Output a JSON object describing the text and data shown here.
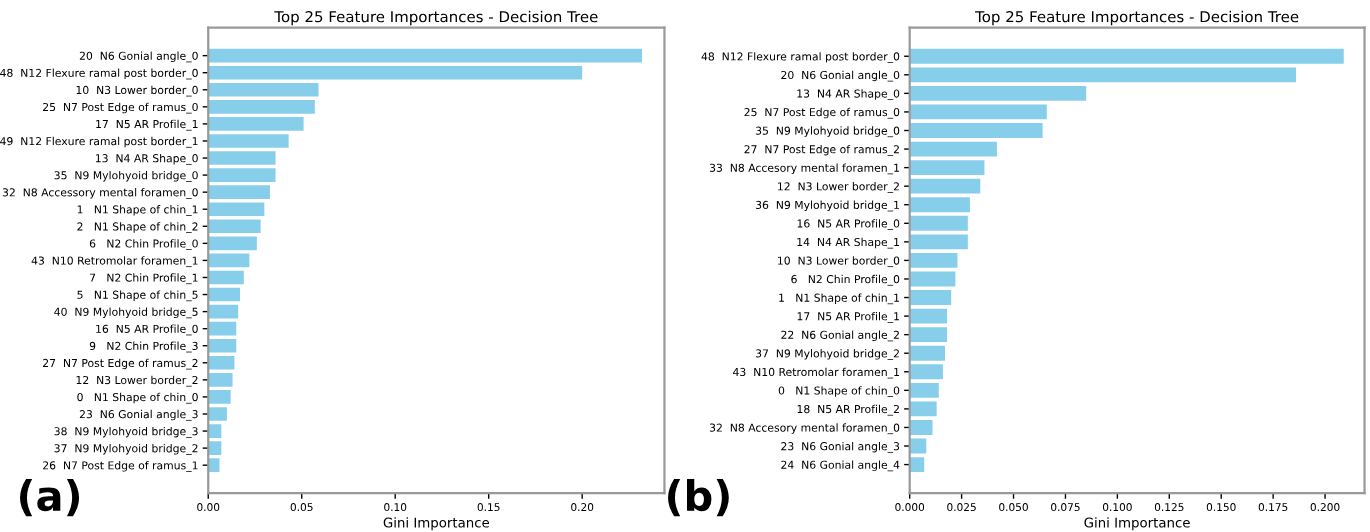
{
  "chart_data": [
    {
      "type": "bar",
      "orientation": "horizontal",
      "title": "Top 25 Feature Importances - Decision Tree",
      "xlabel": "Gini Importance",
      "color": "#87ceeb",
      "grid": false,
      "legend": false,
      "annotations": [
        "(a)"
      ],
      "categories": [
        "20  N6 Gonial angle_0",
        "48  N12 Flexure ramal post border_0",
        "10  N3 Lower border_0",
        "25  N7 Post Edge of ramus_0",
        "17  N5 AR Profile_1",
        "49  N12 Flexure ramal post border_1",
        "13  N4 AR Shape_0",
        "35  N9 Mylohyoid bridge_0",
        "32  N8 Accessory mental foramen_0",
        "1   N1 Shape of chin_1",
        "2   N1 Shape of chin_2",
        "6   N2 Chin Profile_0",
        "43  N10 Retromolar foramen_1",
        "7   N2 Chin Profile_1",
        "5   N1 Shape of chin_5",
        "40  N9 Mylohyoid bridge_5",
        "16  N5 AR Profile_0",
        "9   N2 Chin Profile_3",
        "27  N7 Post Edge of ramus_2",
        "12  N3 Lower border_2",
        "0   N1 Shape of chin_0",
        "23  N6 Gonial angle_3",
        "38  N9 Mylohyoid bridge_3",
        "37  N9 Mylohyoid bridge_2",
        "26  N7 Post Edge of ramus_1"
      ],
      "values": [
        0.232,
        0.2,
        0.059,
        0.057,
        0.051,
        0.043,
        0.036,
        0.036,
        0.033,
        0.03,
        0.028,
        0.026,
        0.022,
        0.019,
        0.017,
        0.016,
        0.015,
        0.015,
        0.014,
        0.013,
        0.012,
        0.01,
        0.007,
        0.007,
        0.006
      ],
      "xlim": [
        0,
        0.244
      ],
      "xticks": [
        {
          "value": 0,
          "label": "0.00"
        },
        {
          "value": 0.05,
          "label": "0.05"
        },
        {
          "value": 0.1,
          "label": "0.10"
        },
        {
          "value": 0.15,
          "label": "0.15"
        },
        {
          "value": 0.2,
          "label": "0.20"
        }
      ]
    },
    {
      "type": "bar",
      "orientation": "horizontal",
      "title": "Top 25 Feature Importances - Decision Tree",
      "xlabel": "Gini Importance",
      "color": "#87ceeb",
      "grid": false,
      "legend": false,
      "annotations": [
        "(b)"
      ],
      "categories": [
        "48  N12 Flexure ramal post border_0",
        "20  N6 Gonial angle_0",
        "13  N4 AR Shape_0",
        "25  N7 Post Edge of ramus_0",
        "35  N9 Mylohyoid bridge_0",
        "27  N7 Post Edge of ramus_2",
        "33  N8 Accesory mental foramen_1",
        "12  N3 Lower border_2",
        "36  N9 Mylohyoid bridge_1",
        "16  N5 AR Profile_0",
        "14  N4 AR Shape_1",
        "10  N3 Lower border_0",
        "6   N2 Chin Profile_0",
        "1   N1 Shape of chin_1",
        "17  N5 AR Profile_1",
        "22  N6 Gonial angle_2",
        "37  N9 Mylohyoid bridge_2",
        "43  N10 Retromolar foramen_1",
        "0   N1 Shape of chin_0",
        "18  N5 AR Profile_2",
        "32  N8 Accesory mental foramen_0",
        "23  N6 Gonial angle_3",
        "24  N6 Gonial angle_4"
      ],
      "values": [
        0.209,
        0.186,
        0.085,
        0.066,
        0.064,
        0.042,
        0.036,
        0.034,
        0.029,
        0.028,
        0.028,
        0.023,
        0.022,
        0.02,
        0.018,
        0.018,
        0.017,
        0.016,
        0.014,
        0.013,
        0.011,
        0.008,
        0.007
      ],
      "xlim": [
        0,
        0.219
      ],
      "xticks": [
        {
          "value": 0,
          "label": "0.000"
        },
        {
          "value": 0.025,
          "label": "0.025"
        },
        {
          "value": 0.05,
          "label": "0.050"
        },
        {
          "value": 0.075,
          "label": "0.075"
        },
        {
          "value": 0.1,
          "label": "0.100"
        },
        {
          "value": 0.125,
          "label": "0.125"
        },
        {
          "value": 0.15,
          "label": "0.150"
        },
        {
          "value": 0.175,
          "label": "0.175"
        },
        {
          "value": 0.2,
          "label": "0.200"
        }
      ]
    }
  ]
}
